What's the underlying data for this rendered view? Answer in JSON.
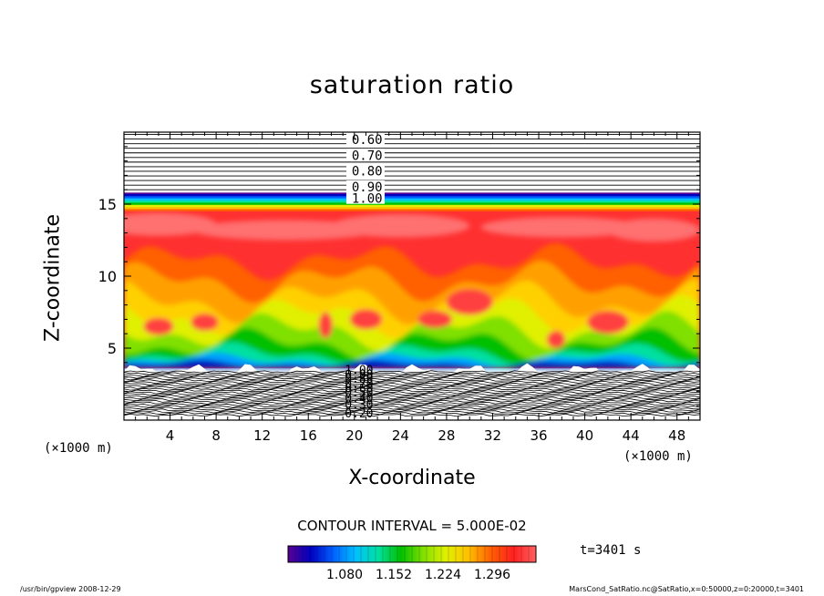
{
  "chart_data": {
    "type": "heatmap",
    "title": "saturation ratio",
    "xlabel": "X-coordinate",
    "ylabel": "Z-coordinate",
    "x_unit": "(×1000 m)",
    "x_unit_right": "(×1000 m)",
    "xlim": [
      0,
      50
    ],
    "ylim": [
      0,
      20
    ],
    "x_ticks": [
      4,
      8,
      12,
      16,
      20,
      24,
      28,
      32,
      36,
      40,
      44,
      48
    ],
    "y_ticks": [
      5,
      10,
      15
    ],
    "upper_contour_labels": [
      "0.60",
      "0.70",
      "0.80",
      "0.90",
      "1.00"
    ],
    "lower_contour_labels": [
      "1.00",
      "0.90",
      "0.80",
      "0.70",
      "0.60",
      "0.50",
      "0.40",
      "0.30",
      "0.20"
    ],
    "contour_interval": "CONTOUR INTERVAL = 5.000E-02",
    "colorbar_ticks": [
      "1.080",
      "1.152",
      "1.224",
      "1.296"
    ],
    "time": "t=3401 s",
    "colormap": [
      "#5a0090",
      "#0000c0",
      "#0060ff",
      "#00c0ff",
      "#00e0a0",
      "#00c000",
      "#80e000",
      "#e0f000",
      "#ffc000",
      "#ff6000",
      "#ff2020",
      "#ff6060"
    ]
  },
  "footer": {
    "left": "/usr/bin/gpview   2008-12-29",
    "right": "MarsCond_SatRatio.nc@SatRatio,x=0:50000,z=0:20000,t=3401"
  }
}
